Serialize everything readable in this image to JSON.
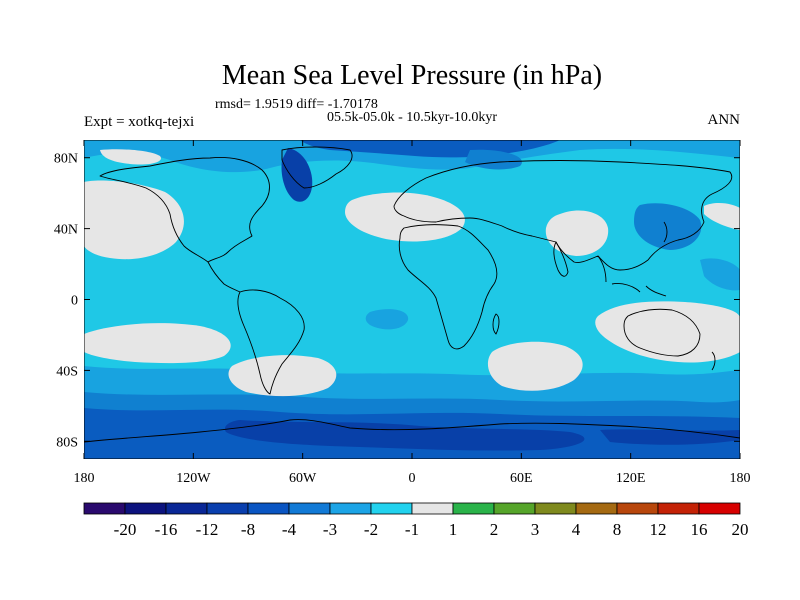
{
  "chart_data": {
    "type": "heatmap",
    "title": "Mean Sea Level Pressure (in hPa)",
    "stats_line": "rmsd= 1.9519  diff= -1.70178",
    "subtitle": "05.5k-05.0k - 10.5kyr-10.0kyr",
    "left_label": "Expt = xotkq-tejxi",
    "right_label": "ANN",
    "x_ticks": [
      {
        "value": -180,
        "label": "180"
      },
      {
        "value": -120,
        "label": "120W"
      },
      {
        "value": -60,
        "label": "60W"
      },
      {
        "value": 0,
        "label": "0"
      },
      {
        "value": 60,
        "label": "60E"
      },
      {
        "value": 120,
        "label": "120E"
      },
      {
        "value": 180,
        "label": "180"
      }
    ],
    "y_ticks": [
      {
        "value": 80,
        "label": "80N"
      },
      {
        "value": 40,
        "label": "40N"
      },
      {
        "value": 0,
        "label": "0"
      },
      {
        "value": -40,
        "label": "40S"
      },
      {
        "value": -80,
        "label": "80S"
      }
    ],
    "xlim": [
      -180,
      180
    ],
    "ylim": [
      -90,
      90
    ],
    "colorbar_labels": [
      "-20",
      "-16",
      "-12",
      "-8",
      "-4",
      "-3",
      "-2",
      "-1",
      "1",
      "2",
      "3",
      "4",
      "8",
      "12",
      "16",
      "20"
    ],
    "colorbar_colors": [
      "#2a0a6e",
      "#0d137e",
      "#0a2796",
      "#0a3fae",
      "#0a55c2",
      "#127ad6",
      "#1ca4e6",
      "#22d2ee",
      "#e6e6e6",
      "#2ab34a",
      "#56a52a",
      "#7f8a1e",
      "#a56a12",
      "#b8470c",
      "#c42206",
      "#d70000"
    ],
    "field_colors": {
      "level_-1": "#1fc8e6",
      "level_-2": "#18a3e0",
      "level_-3": "#1080d0",
      "level_-4": "#0a5cc0",
      "level_-8": "#0840a8",
      "neutral": "#e6e6e6"
    }
  }
}
